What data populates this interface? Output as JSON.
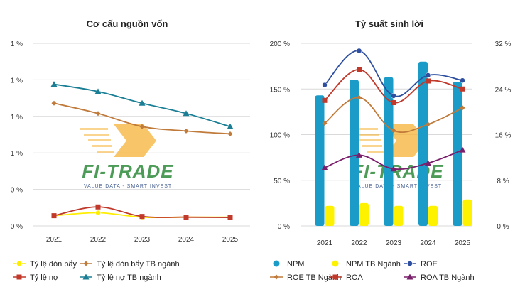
{
  "chart_data": [
    {
      "type": "line",
      "title": "Cơ cấu nguồn vốn",
      "categories": [
        "2021",
        "2022",
        "2023",
        "2024",
        "2025"
      ],
      "y_tick_labels": [
        "0 %",
        "0 %",
        "1 %",
        "1 %",
        "1 %",
        "1 %"
      ],
      "ylim": [
        0,
        1.25
      ],
      "grid": true,
      "legend_position": "bottom",
      "series": [
        {
          "name": "Tỷ lệ đòn bẩy",
          "color": "#ffee00",
          "marker": "circle",
          "values": [
            0.07,
            0.09,
            0.06,
            0.06,
            0.06
          ]
        },
        {
          "name": "Tỷ lệ đòn bẩy TB ngành",
          "color": "#c07a3a",
          "marker": "diamond",
          "values": [
            0.84,
            0.77,
            0.68,
            0.65,
            0.63
          ]
        },
        {
          "name": "Tỷ lệ nợ",
          "color": "#c0392b",
          "marker": "square",
          "values": [
            0.07,
            0.13,
            0.065,
            0.06,
            0.058
          ]
        },
        {
          "name": "Tỷ lệ nợ TB ngành",
          "color": "#1a7f95",
          "marker": "triangle",
          "values": [
            0.97,
            0.92,
            0.84,
            0.77,
            0.68
          ]
        }
      ]
    },
    {
      "type": "bar",
      "title": "Tỷ suất sinh lời",
      "categories": [
        "2021",
        "2022",
        "2023",
        "2024",
        "2025"
      ],
      "left_axis": {
        "ticks": [
          "0 %",
          "50 %",
          "100 %",
          "150 %",
          "200 %"
        ],
        "range": [
          0,
          200
        ]
      },
      "right_axis": {
        "ticks": [
          "0 %",
          "8 %",
          "16 %",
          "24 %",
          "32 %"
        ],
        "range": [
          0,
          32
        ]
      },
      "grid": true,
      "legend_position": "bottom",
      "bars": [
        {
          "name": "NPM",
          "color": "#1b9bc7",
          "axis": "left",
          "values": [
            143,
            160,
            163,
            180,
            158
          ]
        },
        {
          "name": "NPM TB Ngành",
          "color": "#fff200",
          "axis": "left",
          "values": [
            22,
            25,
            22,
            22,
            29
          ]
        }
      ],
      "lines": [
        {
          "name": "ROE",
          "color": "#2e4fa0",
          "marker": "circle",
          "axis": "right",
          "values": [
            24.7,
            30.7,
            22.8,
            26.4,
            25.5
          ]
        },
        {
          "name": "ROE TB Ngành",
          "color": "#c07a3a",
          "marker": "diamond",
          "axis": "right",
          "values": [
            18.0,
            22.5,
            16.7,
            17.8,
            20.7
          ]
        },
        {
          "name": "ROA",
          "color": "#c0392b",
          "marker": "square",
          "axis": "right",
          "values": [
            22.0,
            27.4,
            21.6,
            25.4,
            24.0
          ]
        },
        {
          "name": "ROA TB Ngành",
          "color": "#7a1f6b",
          "marker": "triangle",
          "axis": "right",
          "values": [
            10.2,
            12.4,
            10.0,
            11.0,
            13.3
          ]
        }
      ]
    }
  ],
  "watermark": {
    "brand": "FI-TRADE",
    "tagline": "VALUE DATA - SMART INVEST"
  }
}
